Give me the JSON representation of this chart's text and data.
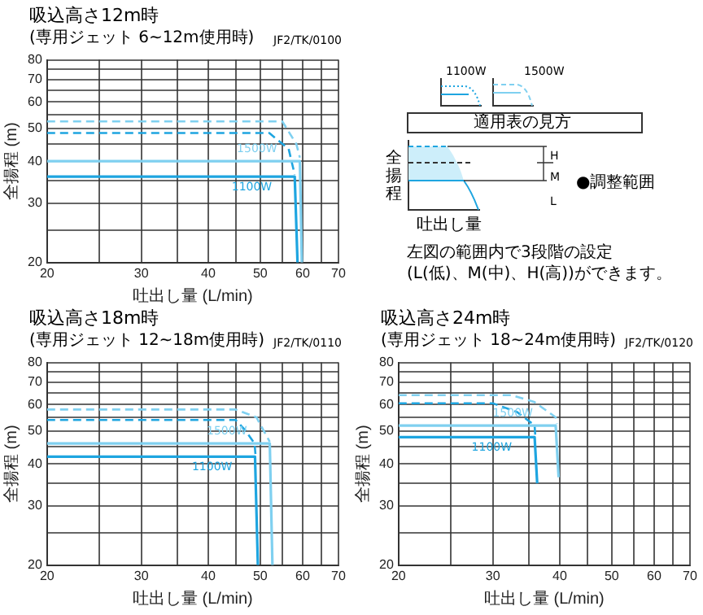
{
  "chart_data": [
    {
      "type": "line",
      "title": "吸込高さ12m時",
      "subtitle": "(専用ジェット 6~12m使用時)",
      "annotations": [
        "JF2/TK/0100"
      ],
      "xlabel": "吐出し量 (L/min)",
      "ylabel": "全揚程 (m)",
      "log": "xy",
      "xlim": [
        20,
        70
      ],
      "ylim": [
        20,
        80
      ],
      "xticks": [
        20,
        {
          "value": 25,
          "label": null
        },
        30,
        {
          "value": 35,
          "label": null
        },
        40,
        {
          "value": 45,
          "label": null
        },
        50,
        {
          "value": 55,
          "label": null
        },
        60,
        {
          "value": 65,
          "label": null
        },
        70
      ],
      "yticks": [
        20,
        {
          "value": 25,
          "label": null
        },
        30,
        {
          "value": 35,
          "label": null
        },
        40,
        {
          "value": 45,
          "label": null
        },
        50,
        {
          "value": 55,
          "label": null
        },
        60,
        {
          "value": 65,
          "label": null
        },
        70,
        {
          "value": 75,
          "label": null
        },
        80
      ],
      "grid": true,
      "marker": "none",
      "series": [
        {
          "name": "1500W",
          "color": "#7fd0f0",
          "x": [
            20,
            59.3,
            59.8
          ],
          "values": [
            40,
            40,
            20
          ]
        },
        {
          "name": "1100W",
          "color": "#1ea5e0",
          "x": [
            20,
            58,
            58.7
          ],
          "values": [
            36,
            36,
            20
          ]
        },
        {
          "color": "#7fd0f0",
          "line_style": "dashed",
          "x": [
            20,
            55,
            58.4,
            59.3
          ],
          "values": [
            52.5,
            52.5,
            45,
            41
          ]
        },
        {
          "color": "#1ea5e0",
          "line_style": "dashed",
          "x": [
            20,
            52,
            56.5,
            58
          ],
          "values": [
            48.5,
            48.5,
            43.5,
            36.5
          ]
        }
      ]
    },
    {
      "type": "other",
      "xlabel": "吐出し量",
      "ylabel": "全揚程",
      "annotations": [
        "1100W",
        "1500W",
        "適用表の見方",
        "H",
        "M",
        "L",
        "●調整範囲",
        "左図の範囲内で3段階の設定",
        "(L(低)、M(中)、H(高))ができます。"
      ]
    },
    {
      "type": "line",
      "title": "吸込高さ18m時",
      "subtitle": "(専用ジェット 12~18m使用時)",
      "annotations": [
        "JF2/TK/0110"
      ],
      "xlabel": "吐出し量 (L/min)",
      "ylabel": "全揚程 (m)",
      "log": "xy",
      "xlim": [
        20,
        70
      ],
      "ylim": [
        20,
        80
      ],
      "xticks": [
        20,
        {
          "value": 25,
          "label": null
        },
        30,
        {
          "value": 35,
          "label": null
        },
        40,
        {
          "value": 45,
          "label": null
        },
        50,
        {
          "value": 55,
          "label": null
        },
        60,
        {
          "value": 65,
          "label": null
        },
        70
      ],
      "yticks": [
        20,
        {
          "value": 25,
          "label": null
        },
        30,
        {
          "value": 35,
          "label": null
        },
        40,
        {
          "value": 45,
          "label": null
        },
        50,
        {
          "value": 55,
          "label": null
        },
        60,
        {
          "value": 65,
          "label": null
        },
        70,
        {
          "value": 75,
          "label": null
        },
        80
      ],
      "grid": true,
      "marker": "none",
      "series": [
        {
          "name": "1500W",
          "color": "#7fd0f0",
          "x": [
            20,
            52.1,
            52.7
          ],
          "values": [
            46,
            46,
            20
          ]
        },
        {
          "name": "1100W",
          "color": "#1ea5e0",
          "x": [
            20,
            48.9,
            49.5
          ],
          "values": [
            42,
            42,
            20
          ]
        },
        {
          "color": "#7fd0f0",
          "line_style": "dashed",
          "x": [
            20,
            45,
            49.2,
            52.1
          ],
          "values": [
            58,
            58,
            55,
            46.5
          ]
        },
        {
          "color": "#1ea5e0",
          "line_style": "dashed",
          "x": [
            20,
            45,
            46.8,
            48.8,
            49
          ],
          "values": [
            54,
            54,
            50.5,
            46,
            42.5
          ]
        }
      ]
    },
    {
      "type": "line",
      "title": "吸込高さ24m時",
      "subtitle": "(専用ジェット 18~24m使用時)",
      "annotations": [
        "JF2/TK/0120"
      ],
      "xlabel": "吐出し量 (L/min)",
      "ylabel": "全揚程 (m)",
      "log": "xy",
      "xlim": [
        20,
        70
      ],
      "ylim": [
        20,
        80
      ],
      "xticks": [
        20,
        {
          "value": 25,
          "label": null
        },
        30,
        {
          "value": 35,
          "label": null
        },
        40,
        {
          "value": 45,
          "label": null
        },
        50,
        {
          "value": 55,
          "label": null
        },
        60,
        {
          "value": 65,
          "label": null
        },
        70
      ],
      "yticks": [
        20,
        {
          "value": 25,
          "label": null
        },
        30,
        {
          "value": 35,
          "label": null
        },
        40,
        {
          "value": 45,
          "label": null
        },
        50,
        {
          "value": 55,
          "label": null
        },
        60,
        {
          "value": 65,
          "label": null
        },
        70,
        {
          "value": 75,
          "label": null
        },
        80
      ],
      "grid": true,
      "marker": "none",
      "series": [
        {
          "name": "1500W",
          "color": "#7fd0f0",
          "x": [
            20,
            39.3,
            39.8
          ],
          "values": [
            52,
            52,
            36.5
          ]
        },
        {
          "name": "1100W",
          "color": "#1ea5e0",
          "x": [
            20,
            35.9,
            36.3
          ],
          "values": [
            48,
            48,
            35
          ]
        },
        {
          "color": "#7fd0f0",
          "line_style": "dashed",
          "x": [
            20,
            32.5,
            35.9,
            39.3,
            39.5
          ],
          "values": [
            64,
            64,
            61,
            55,
            52.5
          ]
        },
        {
          "color": "#1ea5e0",
          "line_style": "dashed",
          "x": [
            20,
            30,
            33.3,
            35.9,
            36
          ],
          "values": [
            60.5,
            60.5,
            57,
            52,
            48.5
          ]
        }
      ]
    }
  ]
}
